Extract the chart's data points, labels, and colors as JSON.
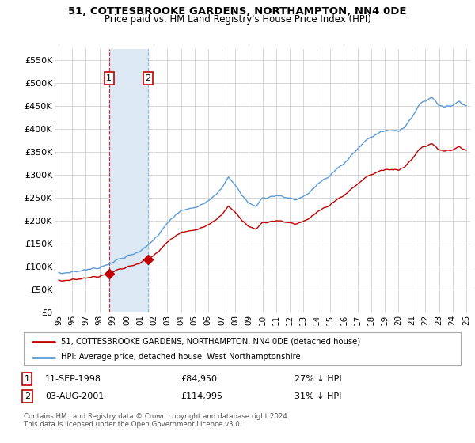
{
  "title": "51, COTTESBROOKE GARDENS, NORTHAMPTON, NN4 0DE",
  "subtitle": "Price paid vs. HM Land Registry's House Price Index (HPI)",
  "ylim": [
    0,
    575000
  ],
  "yticks": [
    0,
    50000,
    100000,
    150000,
    200000,
    250000,
    300000,
    350000,
    400000,
    450000,
    500000,
    550000
  ],
  "ytick_labels": [
    "£0",
    "£50K",
    "£100K",
    "£150K",
    "£200K",
    "£250K",
    "£300K",
    "£350K",
    "£400K",
    "£450K",
    "£500K",
    "£550K"
  ],
  "hpi_color": "#5b9bd5",
  "price_color": "#c00000",
  "purchase1_x": 1998.71,
  "purchase1_y": 84950,
  "purchase2_x": 2001.58,
  "purchase2_y": 114995,
  "vline1_color": "#c00000",
  "vline2_color": "#5b9bd5",
  "span_color": "#dce9f5",
  "legend_line1": "51, COTTESBROOKE GARDENS, NORTHAMPTON, NN4 0DE (detached house)",
  "legend_line2": "HPI: Average price, detached house, West Northamptonshire",
  "ann1_num": "1",
  "ann1_date": "11-SEP-1998",
  "ann1_price": "£84,950",
  "ann1_hpi": "27% ↓ HPI",
  "ann2_num": "2",
  "ann2_date": "03-AUG-2001",
  "ann2_price": "£114,995",
  "ann2_hpi": "31% ↓ HPI",
  "footer": "Contains HM Land Registry data © Crown copyright and database right 2024.\nThis data is licensed under the Open Government Licence v3.0.",
  "background_color": "#ffffff",
  "grid_color": "#d0d0d0",
  "xlim_left": 1994.7,
  "xlim_right": 2025.3
}
